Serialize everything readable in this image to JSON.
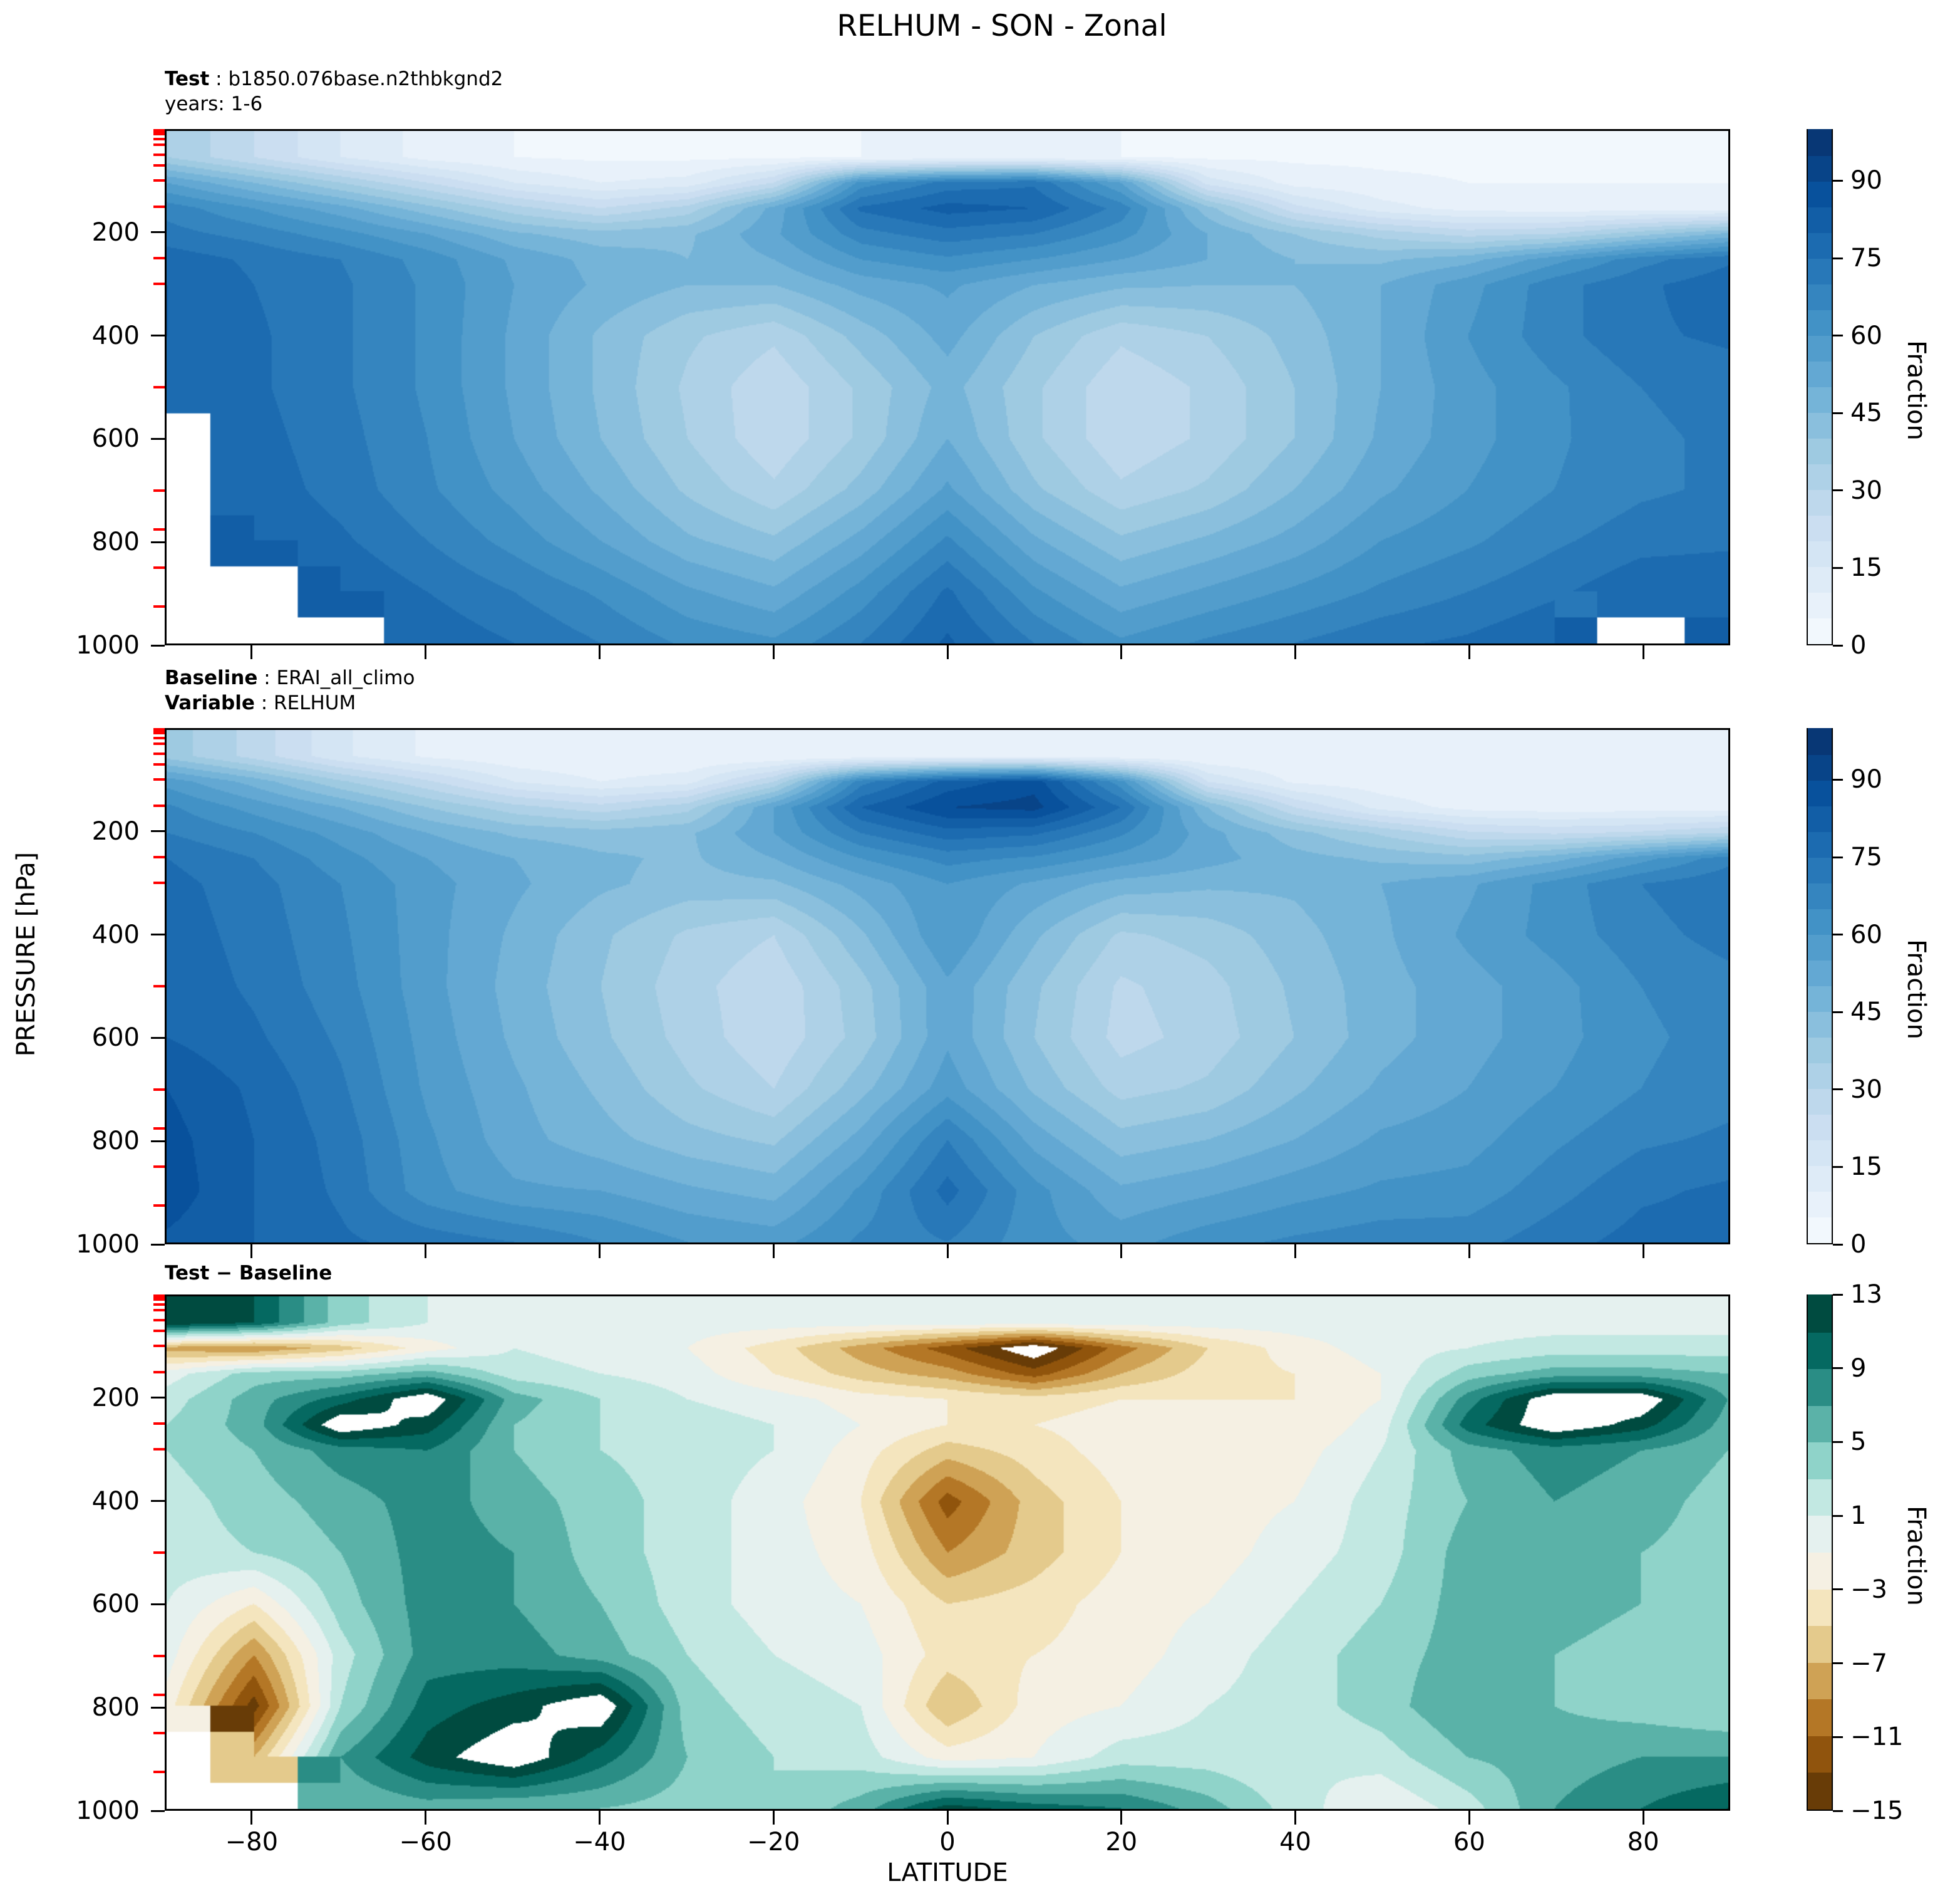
{
  "title": "RELHUM - SON - Zonal",
  "axes": {
    "ylabel": "PRESSURE [hPa]",
    "xlabel": "LATITUDE",
    "y_ticks": [
      200,
      400,
      600,
      800,
      1000
    ],
    "x_ticks": [
      -80,
      -60,
      -40,
      -20,
      0,
      20,
      40,
      60,
      80
    ],
    "red_tick_pressures": [
      1,
      2,
      3,
      5,
      7,
      10,
      20,
      30,
      50,
      70,
      100,
      150,
      250,
      300,
      500,
      700,
      775,
      850,
      925
    ],
    "ylim": [
      0,
      1000
    ],
    "xlim": [
      -90,
      90
    ]
  },
  "panels": [
    {
      "header_key": "Test",
      "header_sep": " : ",
      "header_value": "b1850.076base.n2thbkgnd2",
      "header_line2": "years: 1-6",
      "colorbar_label": "Fraction"
    },
    {
      "header_key": "Baseline",
      "header_sep": " : ",
      "header_value": "ERAI_all_climo",
      "header_key2": "Variable",
      "header_sep2": " : ",
      "header_value2": "RELHUM",
      "colorbar_label": "Fraction"
    },
    {
      "header_key": "Test − Baseline",
      "colorbar_label": "Fraction"
    }
  ],
  "colors": {
    "blues": [
      "#f7fbff",
      "#deebf7",
      "#c6dbef",
      "#9ecae1",
      "#6baed6",
      "#4292c6",
      "#2171b5",
      "#08519c",
      "#08306b"
    ],
    "brbg": [
      "#543005",
      "#8c510a",
      "#bf812d",
      "#dfc27d",
      "#f6e8c3",
      "#f5f5f5",
      "#c7eae5",
      "#80cdc1",
      "#35978f",
      "#01665e",
      "#003c30"
    ],
    "red_tick": "#ff0000",
    "spine": "#000000"
  },
  "chart_data": [
    {
      "type": "contourf",
      "name": "Test",
      "xlabel": "LATITUDE",
      "ylabel": "PRESSURE [hPa]",
      "colormap": "Blues",
      "units": "Fraction",
      "levels_min": 0,
      "levels_max": 100,
      "levels_step": 5,
      "colorbar_ticks": [
        0,
        15,
        30,
        45,
        60,
        75,
        90
      ],
      "lats": [
        -90,
        -80,
        -70,
        -60,
        -50,
        -40,
        -30,
        -20,
        -10,
        0,
        10,
        20,
        30,
        40,
        50,
        60,
        70,
        80,
        90
      ],
      "pressures": [
        50,
        100,
        150,
        200,
        250,
        300,
        400,
        500,
        600,
        700,
        800,
        900,
        1000
      ],
      "values": [
        [
          35,
          25,
          15,
          8,
          5,
          4,
          4,
          4,
          5,
          6,
          6,
          5,
          4,
          4,
          4,
          4,
          4,
          4,
          4
        ],
        [
          55,
          45,
          35,
          25,
          15,
          10,
          12,
          25,
          62,
          72,
          74,
          55,
          18,
          8,
          6,
          5,
          5,
          5,
          5
        ],
        [
          68,
          60,
          52,
          42,
          32,
          25,
          32,
          52,
          76,
          82,
          80,
          68,
          42,
          22,
          12,
          8,
          7,
          7,
          7
        ],
        [
          72,
          68,
          62,
          55,
          46,
          42,
          44,
          54,
          68,
          73,
          70,
          62,
          50,
          40,
          33,
          28,
          30,
          38,
          46
        ],
        [
          78,
          74,
          70,
          63,
          54,
          48,
          45,
          50,
          60,
          64,
          60,
          55,
          50,
          45,
          44,
          48,
          58,
          68,
          74
        ],
        [
          80,
          75,
          71,
          64,
          55,
          49,
          45,
          45,
          52,
          56,
          50,
          46,
          45,
          45,
          50,
          58,
          68,
          74,
          78
        ],
        [
          80,
          76,
          71,
          64,
          54,
          44,
          36,
          31,
          42,
          52,
          40,
          31,
          35,
          42,
          50,
          60,
          68,
          74,
          76
        ],
        [
          78,
          76,
          71,
          64,
          54,
          44,
          34,
          26,
          36,
          47,
          36,
          26,
          31,
          40,
          50,
          58,
          64,
          70,
          72
        ],
        [
          null,
          77,
          72,
          65,
          55,
          45,
          35,
          26,
          36,
          50,
          36,
          26,
          31,
          40,
          51,
          58,
          64,
          69,
          71
        ],
        [
          null,
          78,
          73,
          66,
          58,
          49,
          39,
          31,
          42,
          56,
          41,
          31,
          36,
          45,
          54,
          60,
          65,
          69,
          71
        ],
        [
          null,
          80,
          76,
          70,
          63,
          55,
          46,
          41,
          52,
          66,
          51,
          41,
          46,
          52,
          60,
          64,
          69,
          73,
          74
        ],
        [
          null,
          null,
          80,
          75,
          70,
          64,
          56,
          51,
          62,
          76,
          61,
          51,
          56,
          61,
          66,
          70,
          74,
          79,
          79
        ],
        [
          null,
          null,
          null,
          79,
          75,
          70,
          64,
          61,
          70,
          81,
          70,
          61,
          66,
          70,
          74,
          76,
          80,
          null,
          80
        ]
      ]
    },
    {
      "type": "contourf",
      "name": "Baseline",
      "xlabel": "LATITUDE",
      "ylabel": "PRESSURE [hPa]",
      "colormap": "Blues",
      "units": "Fraction",
      "levels_min": 0,
      "levels_max": 100,
      "levels_step": 5,
      "colorbar_ticks": [
        0,
        15,
        30,
        45,
        60,
        75,
        90
      ],
      "lats": [
        -90,
        -80,
        -70,
        -60,
        -50,
        -40,
        -30,
        -20,
        -10,
        0,
        10,
        20,
        30,
        40,
        50,
        60,
        70,
        80,
        90
      ],
      "pressures": [
        50,
        100,
        150,
        200,
        250,
        300,
        400,
        500,
        600,
        700,
        800,
        900,
        1000
      ],
      "values": [
        [
          38,
          28,
          16,
          9,
          6,
          5,
          5,
          5,
          6,
          7,
          7,
          6,
          5,
          5,
          5,
          5,
          5,
          5,
          5
        ],
        [
          58,
          48,
          36,
          26,
          15,
          10,
          13,
          30,
          68,
          82,
          88,
          62,
          20,
          9,
          7,
          6,
          6,
          6,
          6
        ],
        [
          66,
          58,
          50,
          40,
          32,
          27,
          33,
          55,
          80,
          90,
          92,
          75,
          45,
          25,
          13,
          8,
          7,
          7,
          7
        ],
        [
          70,
          65,
          58,
          50,
          44,
          42,
          44,
          55,
          70,
          78,
          76,
          66,
          52,
          42,
          34,
          26,
          24,
          26,
          30
        ],
        [
          75,
          70,
          62,
          55,
          50,
          46,
          44,
          50,
          60,
          67,
          64,
          58,
          52,
          47,
          44,
          42,
          48,
          58,
          68
        ],
        [
          77,
          72,
          65,
          57,
          51,
          46,
          43,
          44,
          52,
          60,
          54,
          48,
          46,
          46,
          50,
          54,
          62,
          70,
          74
        ],
        [
          78,
          73,
          66,
          57,
          49,
          41,
          34,
          30,
          44,
          60,
          46,
          34,
          37,
          43,
          49,
          56,
          62,
          68,
          72
        ],
        [
          79,
          74,
          67,
          57,
          48,
          40,
          32,
          26,
          38,
          54,
          41,
          29,
          33,
          41,
          48,
          53,
          58,
          65,
          68
        ],
        [
          80,
          76,
          69,
          58,
          49,
          41,
          33,
          26,
          37,
          54,
          40,
          28,
          32,
          40,
          48,
          53,
          58,
          64,
          67
        ],
        [
          85,
          79,
          71,
          59,
          51,
          44,
          36,
          30,
          43,
          58,
          44,
          33,
          36,
          44,
          51,
          55,
          60,
          65,
          68
        ],
        [
          87,
          80,
          73,
          61,
          52,
          47,
          42,
          39,
          52,
          70,
          53,
          42,
          45,
          50,
          56,
          58,
          64,
          69,
          71
        ],
        [
          88,
          80,
          74,
          62,
          56,
          55,
          51,
          48,
          61,
          77,
          62,
          51,
          54,
          58,
          61,
          62,
          68,
          74,
          76
        ],
        [
          84,
          80,
          76,
          73,
          70,
          65,
          60,
          58,
          66,
          70,
          62,
          58,
          63,
          66,
          68,
          68,
          73,
          77,
          77
        ]
      ]
    },
    {
      "type": "contourf",
      "name": "Test − Baseline",
      "xlabel": "LATITUDE",
      "ylabel": "PRESSURE [hPa]",
      "colormap": "BrBG",
      "units": "Fraction",
      "levels_min": -15,
      "levels_max": 13,
      "levels_step": 2,
      "colorbar_ticks": [
        -15,
        -11,
        -7,
        -3,
        1,
        5,
        9,
        13
      ],
      "lats": [
        -90,
        -80,
        -70,
        -60,
        -50,
        -40,
        -30,
        -20,
        -10,
        0,
        10,
        20,
        30,
        40,
        50,
        60,
        70,
        80,
        90
      ],
      "pressures": [
        50,
        100,
        150,
        200,
        250,
        300,
        400,
        500,
        600,
        700,
        800,
        900,
        1000
      ],
      "values": [
        [
          13,
          11,
          4,
          1,
          0,
          0,
          0,
          0,
          0,
          0,
          0,
          0,
          0,
          0,
          0,
          0,
          0,
          0,
          0
        ],
        [
          -8,
          -9,
          -6,
          -2,
          1,
          0,
          -1,
          -4,
          -8,
          -12,
          -17,
          -10,
          -5,
          -2,
          0,
          1,
          2,
          2,
          2
        ],
        [
          0,
          4,
          4,
          6,
          2,
          1,
          0,
          -3,
          -6,
          -8,
          -12,
          -7,
          -4,
          -3,
          -1,
          4,
          6,
          6,
          5
        ],
        [
          2,
          6,
          10,
          15,
          6,
          3,
          1,
          0,
          -2,
          -3,
          -4,
          -3,
          -3,
          -3,
          -1,
          8,
          15,
          15,
          7
        ],
        [
          3,
          6,
          15,
          12,
          5,
          3,
          2,
          1,
          -1,
          -3,
          -3,
          -2,
          -2,
          -3,
          0,
          10,
          15,
          12,
          6
        ],
        [
          3,
          5,
          8,
          9,
          5,
          3,
          2,
          1,
          -2,
          -6,
          -4,
          -2,
          -2,
          -2,
          1,
          6,
          8,
          7,
          5
        ],
        [
          2,
          4,
          6,
          8,
          6,
          4,
          2,
          0,
          -3,
          -12,
          -6,
          -3,
          -2,
          -1,
          2,
          5,
          7,
          6,
          4
        ],
        [
          2,
          3,
          5,
          8,
          7,
          4,
          2,
          0,
          -2,
          -9,
          -6,
          -3,
          -2,
          0,
          2,
          6,
          7,
          5,
          4
        ],
        [
          1,
          -3,
          4,
          8,
          7,
          5,
          2,
          0,
          -1,
          -5,
          -4,
          -2,
          -1,
          1,
          3,
          6,
          6,
          5,
          4
        ],
        [
          0,
          -9,
          2,
          8,
          8,
          6,
          3,
          1,
          0,
          -4,
          -3,
          -2,
          0,
          2,
          4,
          6,
          5,
          4,
          3
        ],
        [
          -2,
          -14,
          3,
          10,
          12,
          15,
          4,
          2,
          1,
          -7,
          -2,
          -1,
          1,
          2,
          4,
          7,
          5,
          4,
          3
        ],
        [
          null,
          -7,
          7,
          12,
          15,
          10,
          5,
          3,
          2,
          -2,
          -1,
          2,
          2,
          1,
          2,
          5,
          6,
          7,
          7
        ],
        [
          null,
          null,
          5,
          6,
          5,
          5,
          4,
          3,
          6,
          12,
          10,
          9,
          6,
          2,
          -1,
          2,
          7,
          9,
          11
        ]
      ]
    }
  ]
}
